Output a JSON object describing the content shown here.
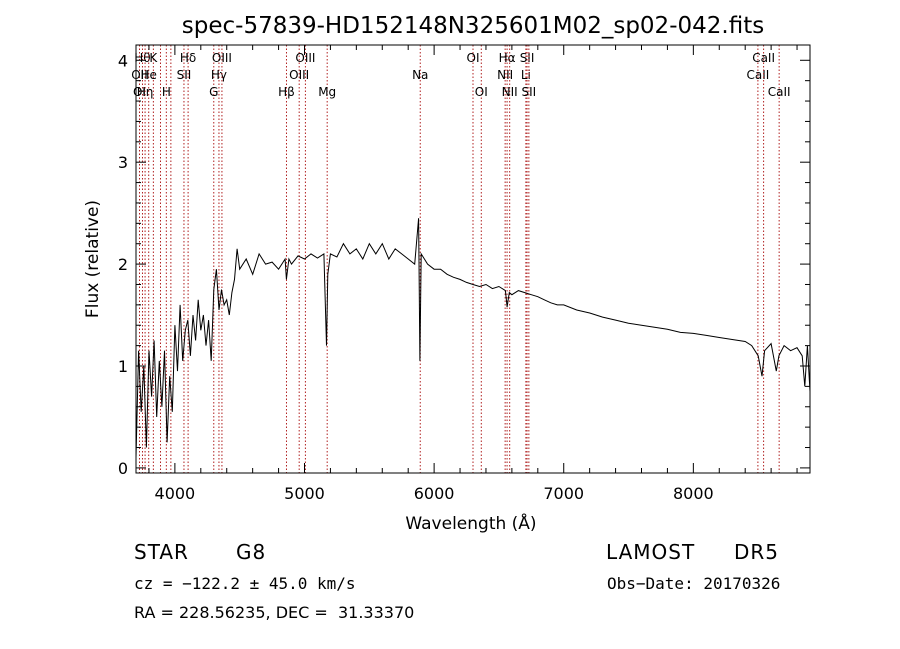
{
  "chart_data": {
    "type": "line",
    "title": "spec-57839-HD152148N325601M02_sp02-042.fits",
    "xlabel": "Wavelength (Å)",
    "ylabel": "Flux (relative)",
    "xlim": [
      3700,
      8900
    ],
    "ylim": [
      -0.05,
      4.15
    ],
    "x_ticks": [
      4000,
      5000,
      6000,
      7000,
      8000
    ],
    "x_tick_labels": [
      "4000",
      "5000",
      "6000",
      "7000",
      "8000"
    ],
    "y_ticks": [
      0,
      1,
      2,
      3,
      4
    ],
    "y_tick_labels": [
      "0",
      "1",
      "2",
      "3",
      "4"
    ],
    "grid": false,
    "line_color": "#000000",
    "marker_color": "#b02020",
    "series": [
      {
        "x": [
          3700,
          3720,
          3740,
          3760,
          3780,
          3800,
          3820,
          3840,
          3860,
          3880,
          3900,
          3920,
          3940,
          3960,
          3980,
          4000,
          4020,
          4040,
          4060,
          4080,
          4100,
          4120,
          4140,
          4160,
          4180,
          4200,
          4220,
          4240,
          4260,
          4280,
          4300,
          4320,
          4340,
          4360,
          4380,
          4400,
          4420,
          4440,
          4460,
          4480,
          4500,
          4550,
          4600,
          4650,
          4700,
          4750,
          4800,
          4850,
          4860,
          4880,
          4900,
          4950,
          5000,
          5050,
          5100,
          5150,
          5170,
          5180,
          5200,
          5250,
          5300,
          5350,
          5400,
          5450,
          5500,
          5550,
          5600,
          5650,
          5700,
          5750,
          5800,
          5850,
          5880,
          5890,
          5900,
          5950,
          6000,
          6050,
          6100,
          6150,
          6200,
          6250,
          6300,
          6350,
          6400,
          6450,
          6500,
          6550,
          6563,
          6580,
          6600,
          6650,
          6700,
          6750,
          6800,
          6850,
          6900,
          6950,
          7000,
          7100,
          7200,
          7300,
          7400,
          7500,
          7600,
          7700,
          7800,
          7900,
          8000,
          8100,
          8200,
          8300,
          8400,
          8450,
          8500,
          8530,
          8550,
          8600,
          8640,
          8660,
          8700,
          8750,
          8800,
          8840,
          8860,
          8880,
          8900
        ],
        "y": [
          0.1,
          1.15,
          0.55,
          1.0,
          0.2,
          1.15,
          0.7,
          1.25,
          0.5,
          1.05,
          0.6,
          1.15,
          0.25,
          0.9,
          0.55,
          1.4,
          0.95,
          1.6,
          1.05,
          1.35,
          1.45,
          1.1,
          1.5,
          1.25,
          1.65,
          1.35,
          1.5,
          1.2,
          1.45,
          1.05,
          1.75,
          1.95,
          1.55,
          1.75,
          1.6,
          1.65,
          1.5,
          1.72,
          1.85,
          2.15,
          1.95,
          2.05,
          1.9,
          2.1,
          2.0,
          2.02,
          1.95,
          2.05,
          1.85,
          2.05,
          2.0,
          2.08,
          2.05,
          2.1,
          2.06,
          2.1,
          1.2,
          1.9,
          2.1,
          2.07,
          2.2,
          2.1,
          2.15,
          2.05,
          2.2,
          2.1,
          2.2,
          2.05,
          2.15,
          2.1,
          2.05,
          2.0,
          2.45,
          1.05,
          2.1,
          2.0,
          1.95,
          1.95,
          1.9,
          1.87,
          1.85,
          1.82,
          1.8,
          1.78,
          1.8,
          1.76,
          1.78,
          1.74,
          1.58,
          1.72,
          1.7,
          1.74,
          1.72,
          1.7,
          1.68,
          1.65,
          1.62,
          1.6,
          1.6,
          1.55,
          1.52,
          1.48,
          1.45,
          1.42,
          1.4,
          1.38,
          1.36,
          1.33,
          1.32,
          1.3,
          1.28,
          1.26,
          1.24,
          1.2,
          1.1,
          0.9,
          1.15,
          1.22,
          0.95,
          1.1,
          1.2,
          1.15,
          1.18,
          1.1,
          0.8,
          1.2,
          0.75
        ]
      }
    ],
    "line_markers": [
      {
        "x": 3750,
        "labels": [
          {
            "text": "Hθ",
            "row": 0
          }
        ]
      },
      {
        "x": 3727,
        "labels": [
          {
            "text": "OII",
            "row": 1
          },
          {
            "text": "OI",
            "row": 2
          }
        ]
      },
      {
        "x": 3770,
        "labels": [
          {
            "text": "Hη",
            "row": 2
          }
        ]
      },
      {
        "x": 3798,
        "labels": [
          {
            "text": "He",
            "row": 1
          }
        ]
      },
      {
        "x": 3834,
        "labels": [
          {
            "text": "K",
            "row": 0
          }
        ]
      },
      {
        "x": 3889,
        "labels": []
      },
      {
        "x": 3934,
        "labels": [
          {
            "text": "H",
            "row": 2
          }
        ]
      },
      {
        "x": 3969,
        "labels": []
      },
      {
        "x": 4070,
        "labels": [
          {
            "text": "SII",
            "row": 1
          }
        ]
      },
      {
        "x": 4102,
        "labels": [
          {
            "text": "Hδ",
            "row": 0
          }
        ]
      },
      {
        "x": 4300,
        "labels": [
          {
            "text": "G",
            "row": 2
          }
        ]
      },
      {
        "x": 4340,
        "labels": [
          {
            "text": "Hγ",
            "row": 1
          }
        ]
      },
      {
        "x": 4363,
        "labels": [
          {
            "text": "OIII",
            "row": 0
          }
        ]
      },
      {
        "x": 4861,
        "labels": [
          {
            "text": "Hβ",
            "row": 2
          }
        ]
      },
      {
        "x": 4959,
        "labels": [
          {
            "text": "OIII",
            "row": 1
          }
        ]
      },
      {
        "x": 5007,
        "labels": [
          {
            "text": "OIII",
            "row": 0
          }
        ]
      },
      {
        "x": 5175,
        "labels": [
          {
            "text": "Mg",
            "row": 2
          }
        ]
      },
      {
        "x": 5893,
        "labels": [
          {
            "text": "Na",
            "row": 1
          }
        ]
      },
      {
        "x": 6300,
        "labels": [
          {
            "text": "OI",
            "row": 0
          }
        ]
      },
      {
        "x": 6364,
        "labels": [
          {
            "text": "OI",
            "row": 2
          }
        ]
      },
      {
        "x": 6548,
        "labels": [
          {
            "text": "NII",
            "row": 1
          }
        ]
      },
      {
        "x": 6563,
        "labels": [
          {
            "text": "Hα",
            "row": 0
          }
        ]
      },
      {
        "x": 6583,
        "labels": [
          {
            "text": "NII",
            "row": 2
          }
        ]
      },
      {
        "x": 6708,
        "labels": [
          {
            "text": "Li",
            "row": 1
          }
        ]
      },
      {
        "x": 6717,
        "labels": [
          {
            "text": "SII",
            "row": 0
          }
        ]
      },
      {
        "x": 6731,
        "labels": [
          {
            "text": "SII",
            "row": 2
          }
        ]
      },
      {
        "x": 8498,
        "labels": [
          {
            "text": "CaII",
            "row": 1
          }
        ]
      },
      {
        "x": 8542,
        "labels": [
          {
            "text": "CaII",
            "row": 0
          }
        ]
      },
      {
        "x": 8662,
        "labels": [
          {
            "text": "CaII",
            "row": 2
          }
        ]
      }
    ]
  },
  "info": {
    "object_class": "STAR",
    "subclass": "G8",
    "survey": "LAMOST",
    "data_release": "DR5",
    "redshift_line": "cz = −122.2 ± 45.0 km/s",
    "obs_date_line": "Obs−Date: 20170326",
    "coords_line": "RA = 228.56235, DEC =  31.33370"
  }
}
